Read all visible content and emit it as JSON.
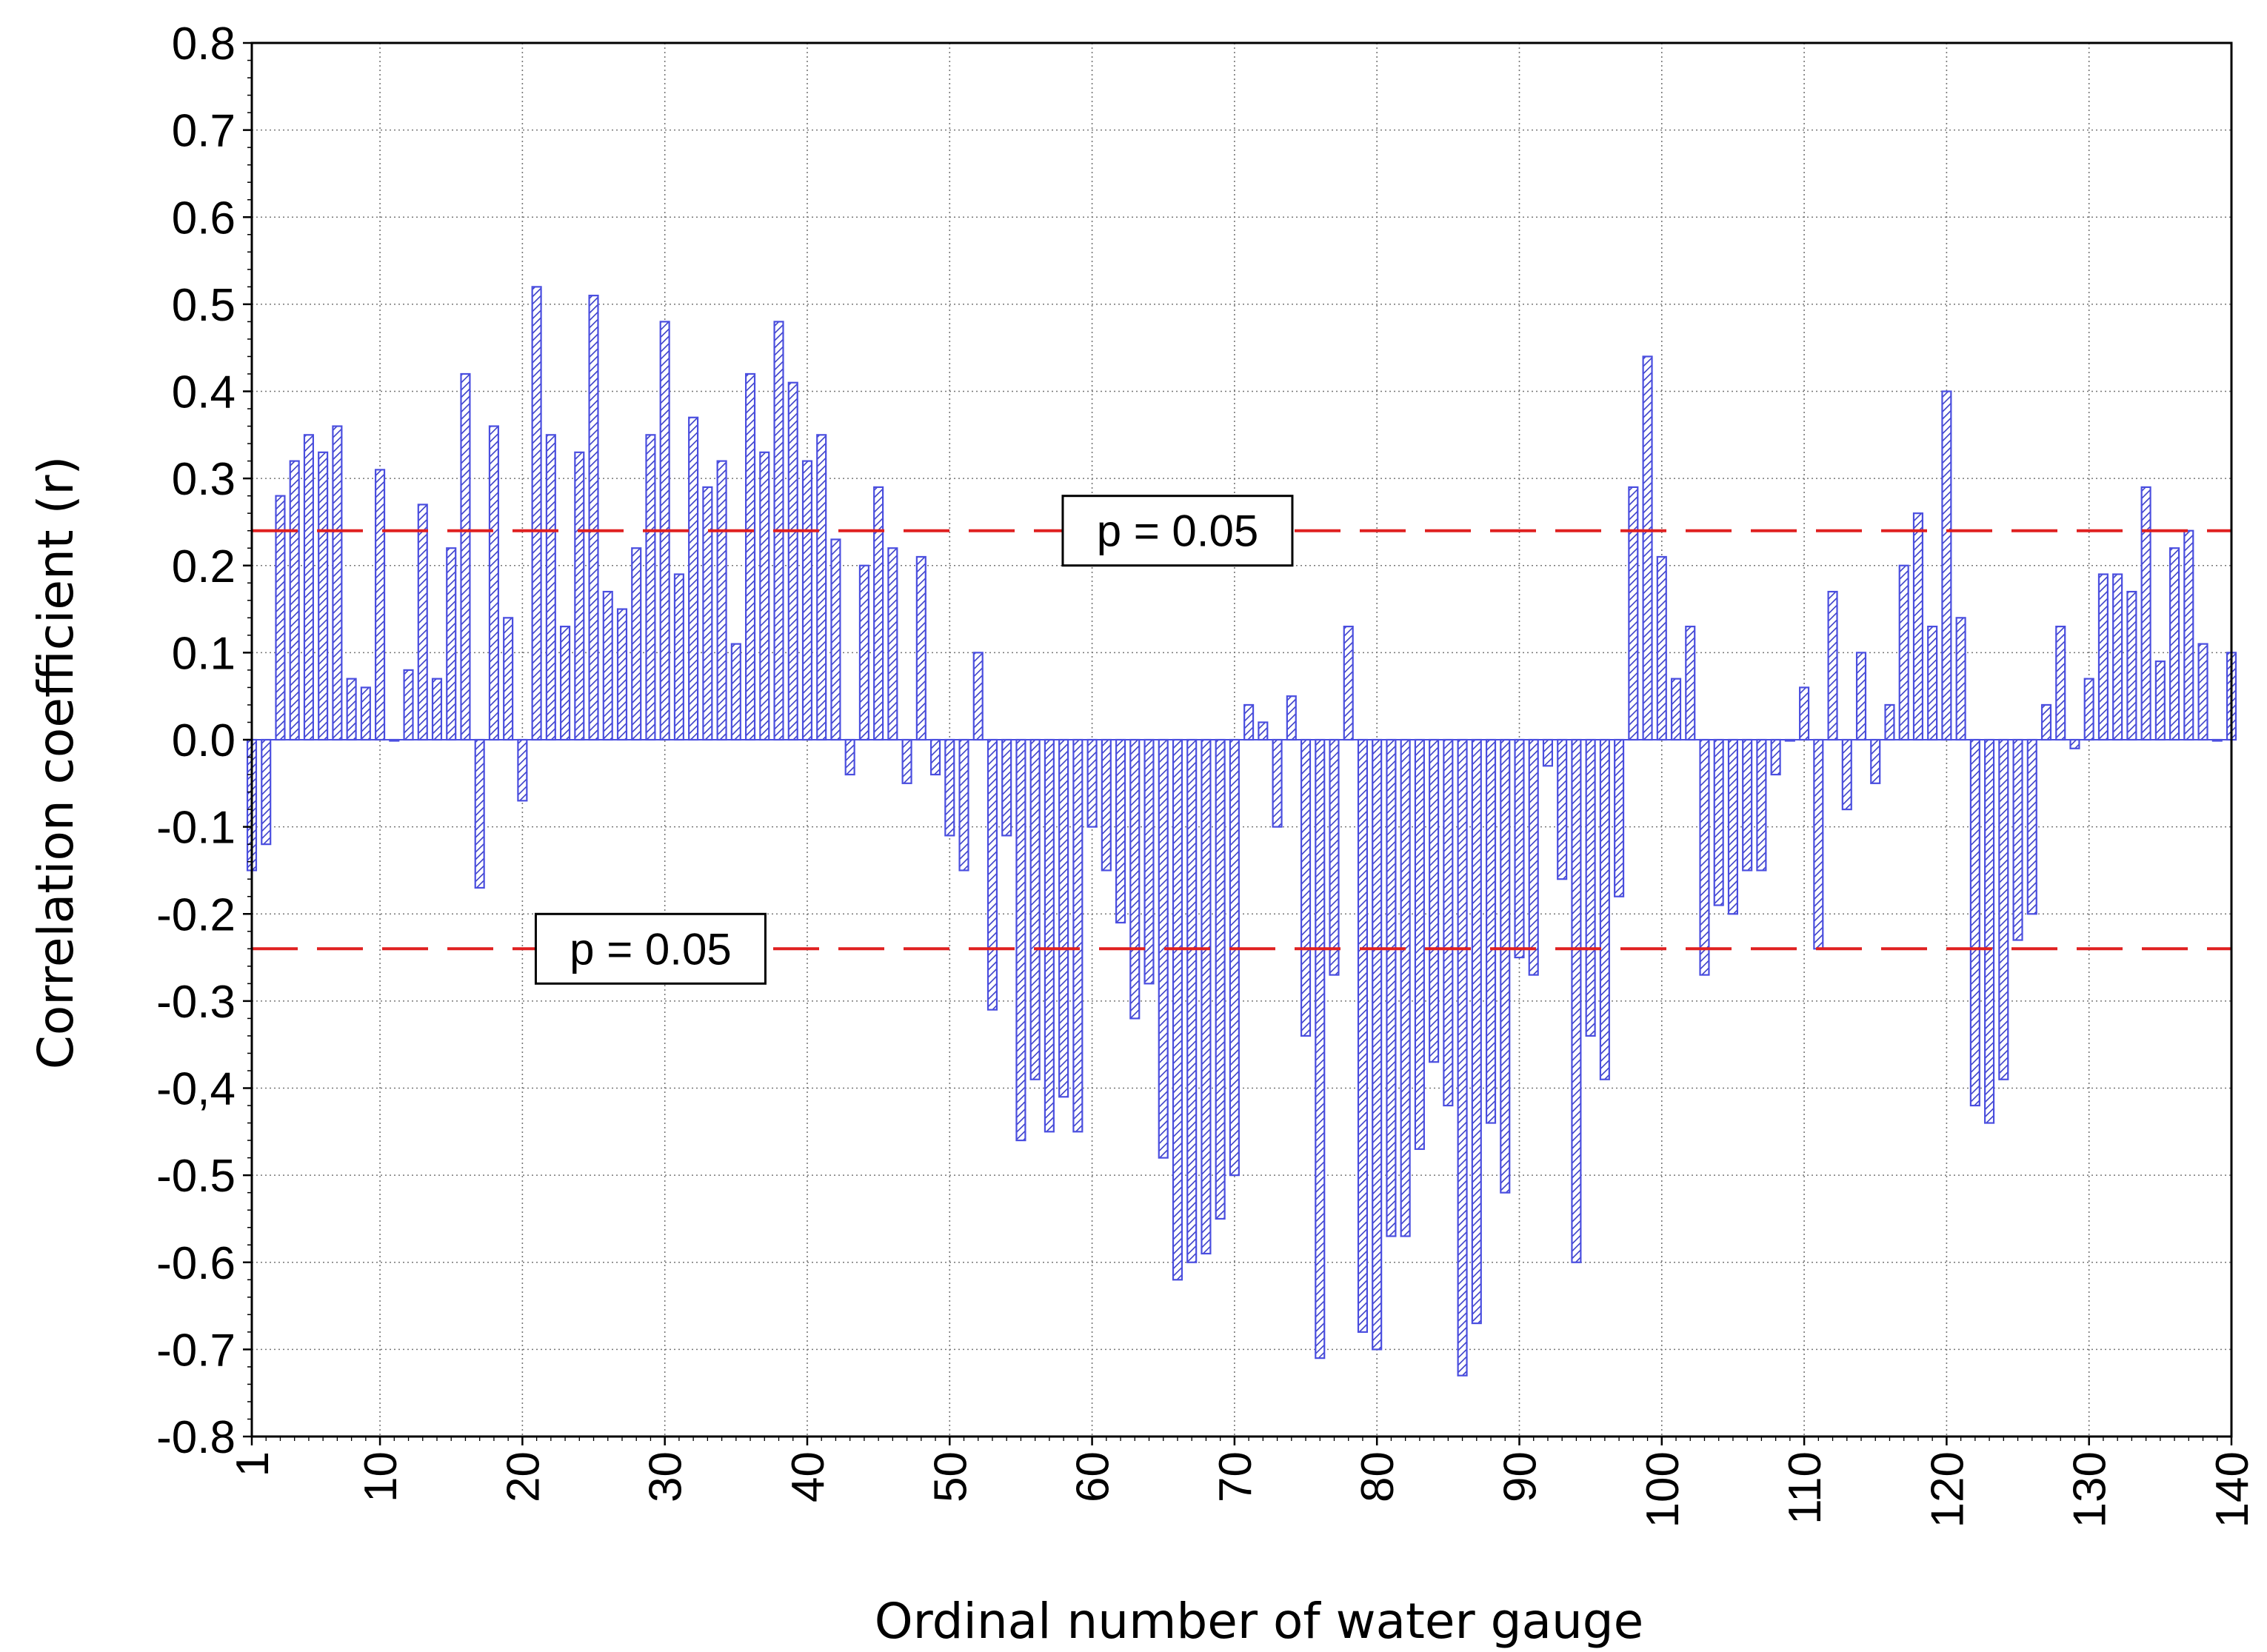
{
  "chart_data": {
    "type": "bar",
    "xlabel": "Ordinal number of water gauge",
    "ylabel": "Correlation coefficient (r)",
    "xlim": [
      1,
      140
    ],
    "ylim": [
      -0.8,
      0.8
    ],
    "yticks": [
      "0.8",
      "0.7",
      "0.6",
      "0.5",
      "0.4",
      "0.3",
      "0.2",
      "0.1",
      "0.0",
      "-0.1",
      "-0.2",
      "-0.3",
      "-0,4",
      "-0.5",
      "-0.6",
      "-0.7",
      "-0.8"
    ],
    "ytick_values": [
      0.8,
      0.7,
      0.6,
      0.5,
      0.4,
      0.3,
      0.2,
      0.1,
      0.0,
      -0.1,
      -0.2,
      -0.3,
      -0.4,
      -0.5,
      -0.6,
      -0.7,
      -0.8
    ],
    "xticks": [
      "1",
      "10",
      "20",
      "30",
      "40",
      "50",
      "60",
      "70",
      "80",
      "90",
      "100",
      "110",
      "120",
      "130",
      "140"
    ],
    "xtick_values": [
      1,
      10,
      20,
      30,
      40,
      50,
      60,
      70,
      80,
      90,
      100,
      110,
      120,
      130,
      140
    ],
    "grid": true,
    "bar_color": "#4a4ee0",
    "bar_hatch_color": "#3a3ec8",
    "threshold_color": "#e02020",
    "thresholds": [
      {
        "value": 0.24,
        "label": "p = 0.05",
        "label_x": 66
      },
      {
        "value": -0.24,
        "label": "p = 0.05",
        "label_x": 29
      }
    ],
    "x": [
      1,
      2,
      3,
      4,
      5,
      6,
      7,
      8,
      9,
      10,
      11,
      12,
      13,
      14,
      15,
      16,
      17,
      18,
      19,
      20,
      21,
      22,
      23,
      24,
      25,
      26,
      27,
      28,
      29,
      30,
      31,
      32,
      33,
      34,
      35,
      36,
      37,
      38,
      39,
      40,
      41,
      42,
      43,
      44,
      45,
      46,
      47,
      48,
      49,
      50,
      51,
      52,
      53,
      54,
      55,
      56,
      57,
      58,
      59,
      60,
      61,
      62,
      63,
      64,
      65,
      66,
      67,
      68,
      69,
      70,
      71,
      72,
      73,
      74,
      75,
      76,
      77,
      78,
      79,
      80,
      81,
      82,
      83,
      84,
      85,
      86,
      87,
      88,
      89,
      90,
      91,
      92,
      93,
      94,
      95,
      96,
      97,
      98,
      99,
      100,
      101,
      102,
      103,
      104,
      105,
      106,
      107,
      108,
      109,
      110,
      111,
      112,
      113,
      114,
      115,
      116,
      117,
      118,
      119,
      120,
      121,
      122,
      123,
      124,
      125,
      126,
      127,
      128,
      129,
      130,
      131,
      132,
      133,
      134,
      135,
      136,
      137,
      138,
      139,
      140
    ],
    "values": [
      -0.15,
      -0.12,
      0.28,
      0.32,
      0.35,
      0.33,
      0.36,
      0.07,
      0.06,
      0.31,
      0.0,
      0.08,
      0.27,
      0.07,
      0.22,
      0.42,
      -0.17,
      0.36,
      0.14,
      -0.07,
      0.52,
      0.35,
      0.13,
      0.33,
      0.51,
      0.17,
      0.15,
      0.22,
      0.35,
      0.48,
      0.19,
      0.37,
      0.29,
      0.32,
      0.11,
      0.42,
      0.33,
      0.48,
      0.41,
      0.32,
      0.35,
      0.23,
      -0.04,
      0.2,
      0.29,
      0.22,
      -0.05,
      0.21,
      -0.04,
      -0.11,
      -0.15,
      0.1,
      -0.31,
      -0.11,
      -0.46,
      -0.39,
      -0.45,
      -0.41,
      -0.45,
      -0.1,
      -0.15,
      -0.21,
      -0.32,
      -0.28,
      -0.48,
      -0.62,
      -0.6,
      -0.59,
      -0.55,
      -0.5,
      0.04,
      0.02,
      -0.1,
      0.05,
      -0.34,
      -0.71,
      -0.27,
      0.13,
      -0.68,
      -0.7,
      -0.57,
      -0.57,
      -0.47,
      -0.37,
      -0.42,
      -0.73,
      -0.67,
      -0.44,
      -0.52,
      -0.25,
      -0.27,
      -0.03,
      -0.16,
      -0.6,
      -0.34,
      -0.39,
      -0.18,
      0.29,
      0.44,
      0.21,
      0.07,
      0.13,
      -0.27,
      -0.19,
      -0.2,
      -0.15,
      -0.15,
      -0.04,
      0.0,
      0.06,
      -0.24,
      0.17,
      -0.08,
      0.1,
      -0.05,
      0.04,
      0.2,
      0.26,
      0.13,
      0.4,
      0.14,
      -0.42,
      -0.44,
      -0.39,
      -0.23,
      -0.2,
      0.04,
      0.13,
      -0.01,
      0.07,
      0.19,
      0.19,
      0.17,
      0.29,
      0.09,
      0.22,
      0.24,
      0.11,
      0.0,
      0.1
    ]
  }
}
